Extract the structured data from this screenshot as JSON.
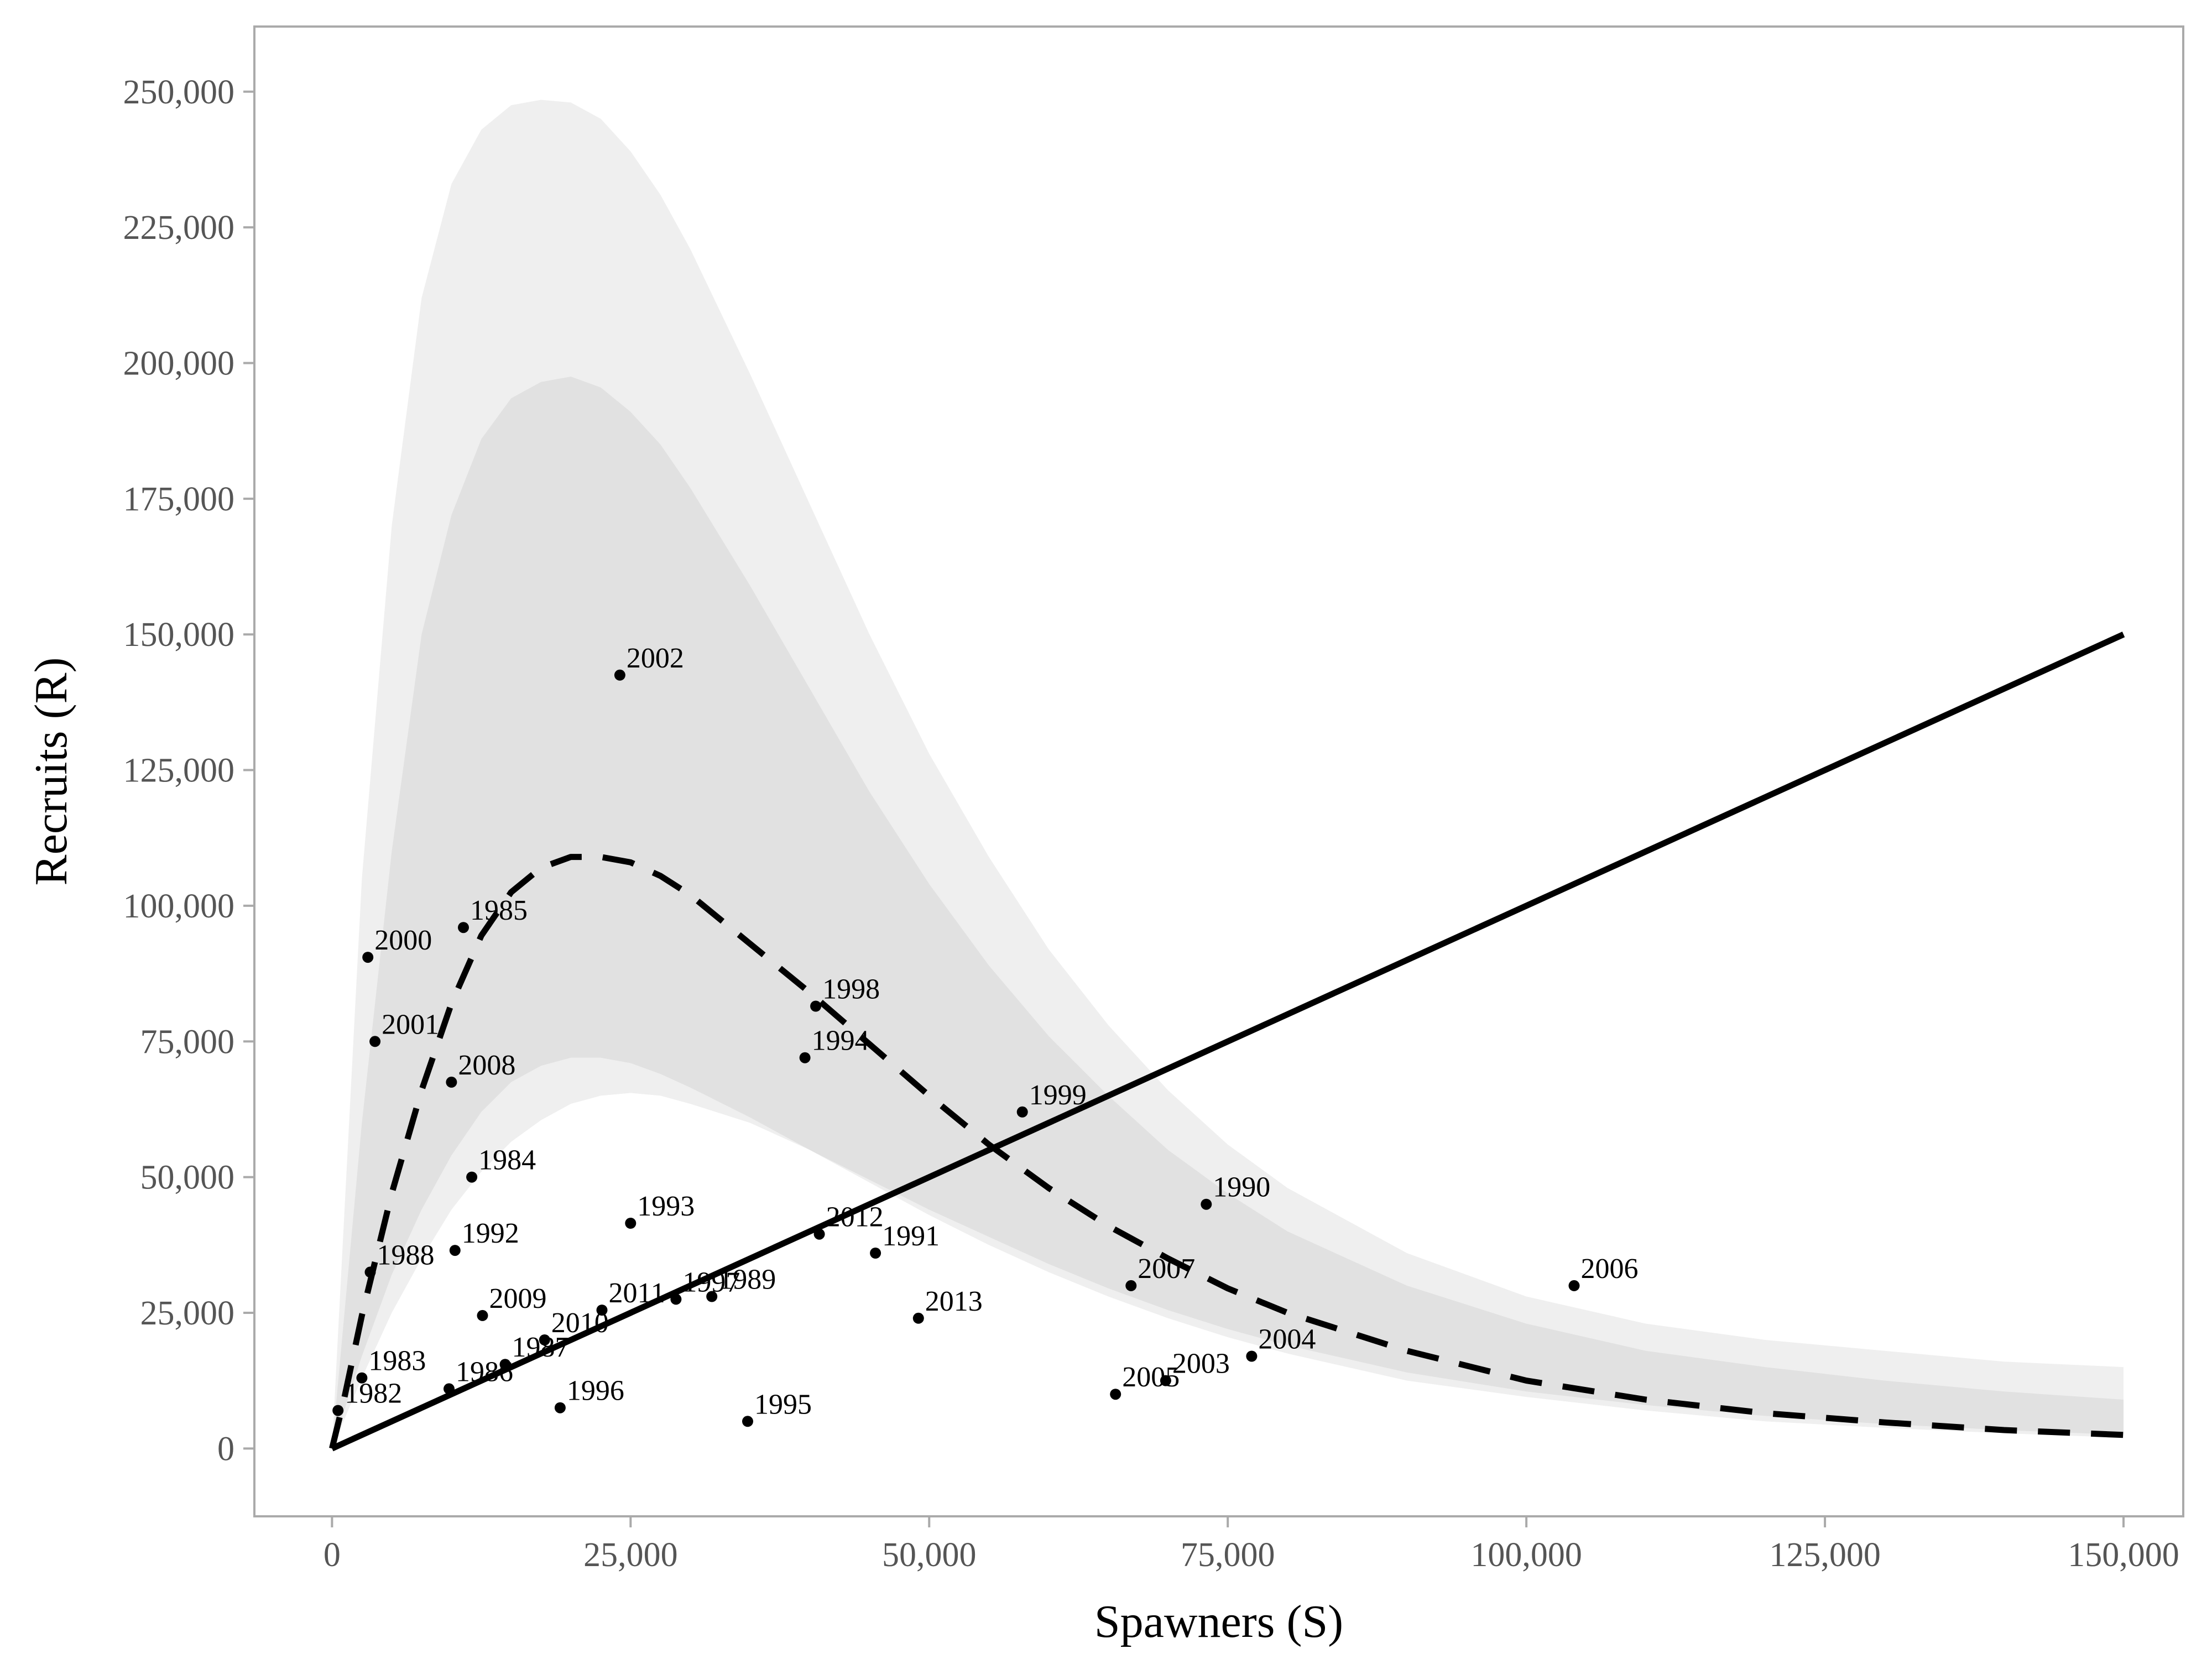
{
  "chart_data": {
    "type": "scatter",
    "xlabel": "Spawners (S)",
    "ylabel": "Recruits (R)",
    "xlim": [
      -6500,
      155000
    ],
    "ylim": [
      -12500,
      262000
    ],
    "x_ticks": [
      0,
      25000,
      50000,
      75000,
      100000,
      125000,
      150000
    ],
    "x_tick_labels": [
      "0",
      "25,000",
      "50,000",
      "75,000",
      "100,000",
      "125,000",
      "150,000"
    ],
    "y_ticks": [
      0,
      25000,
      50000,
      75000,
      100000,
      125000,
      150000,
      175000,
      200000,
      225000,
      250000
    ],
    "y_tick_labels": [
      "0",
      "25,000",
      "50,000",
      "75,000",
      "100,000",
      "125,000",
      "150,000",
      "175,000",
      "200,000",
      "225,000",
      "250,000"
    ],
    "grid": false,
    "colors": {
      "outer_band": "#efefef",
      "inner_band": "#e1e1e1",
      "points": "#000000",
      "lines": "#000000",
      "frame": "#aaaaaa"
    },
    "ricker_curve": {
      "style": "dashed",
      "x": [
        0,
        1000,
        2500,
        5000,
        7500,
        10000,
        12500,
        15000,
        17500,
        20000,
        22500,
        25000,
        27500,
        30000,
        35000,
        40000,
        45000,
        50000,
        55000,
        60000,
        65000,
        70000,
        75000,
        80000,
        90000,
        100000,
        110000,
        120000,
        130000,
        140000,
        150000
      ],
      "y": [
        0,
        9000,
        24500,
        47000,
        66000,
        82000,
        94500,
        102500,
        107000,
        109000,
        109000,
        108000,
        105500,
        102000,
        93000,
        84000,
        74500,
        65000,
        56000,
        48000,
        41000,
        35000,
        29500,
        25000,
        18000,
        12500,
        9000,
        6500,
        4800,
        3400,
        2500
      ]
    },
    "replacement_line": {
      "style": "solid",
      "x": [
        0,
        150000
      ],
      "y": [
        0,
        150000
      ]
    },
    "credible_bands": [
      {
        "x": [
          0,
          2500,
          5000,
          7500,
          10000,
          12500,
          15000,
          17500,
          20000,
          22500,
          25000,
          27500,
          30000,
          35000,
          40000,
          45000,
          50000,
          55000,
          60000,
          65000,
          70000,
          75000,
          80000,
          90000,
          100000,
          110000,
          120000,
          130000,
          140000,
          150000
        ],
        "lower": [
          0,
          13000,
          25000,
          35000,
          44000,
          51000,
          56500,
          60500,
          63500,
          65000,
          65500,
          65000,
          63500,
          60000,
          55000,
          49500,
          44000,
          39000,
          34000,
          29500,
          25500,
          22000,
          19000,
          14000,
          10500,
          8000,
          6000,
          4500,
          3400,
          2500
        ],
        "upper": [
          0,
          105000,
          170000,
          212000,
          233000,
          243000,
          247500,
          248500,
          248000,
          245000,
          239000,
          231000,
          221000,
          198000,
          174000,
          150000,
          128000,
          109000,
          92000,
          78000,
          66000,
          56000,
          48000,
          36000,
          28000,
          23000,
          20000,
          18000,
          16000,
          15000
        ]
      },
      {
        "x": [
          0,
          2500,
          5000,
          7500,
          10000,
          12500,
          15000,
          17500,
          20000,
          22500,
          25000,
          27500,
          30000,
          35000,
          40000,
          45000,
          50000,
          55000,
          60000,
          65000,
          70000,
          75000,
          80000,
          90000,
          100000,
          110000,
          120000,
          130000,
          140000,
          150000
        ],
        "lower": [
          0,
          17000,
          32000,
          44000,
          54000,
          62000,
          67500,
          70500,
          72000,
          72000,
          71000,
          69000,
          66500,
          61000,
          55000,
          49000,
          43000,
          37500,
          32500,
          28000,
          24000,
          20500,
          17500,
          12500,
          9500,
          7000,
          5000,
          3800,
          2800,
          2000
        ],
        "upper": [
          0,
          60000,
          110000,
          150000,
          172000,
          186000,
          193500,
          196500,
          197500,
          195500,
          191000,
          185000,
          177000,
          159000,
          140000,
          121000,
          104000,
          89000,
          76000,
          65000,
          55000,
          47000,
          40000,
          30000,
          23000,
          18000,
          15000,
          12500,
          10500,
          9000
        ]
      }
    ],
    "points": [
      {
        "label": "1982",
        "x": 500,
        "y": 7000
      },
      {
        "label": "1983",
        "x": 2500,
        "y": 13000
      },
      {
        "label": "1984",
        "x": 11700,
        "y": 50000
      },
      {
        "label": "1985",
        "x": 11000,
        "y": 96000
      },
      {
        "label": "1986",
        "x": 9800,
        "y": 11000
      },
      {
        "label": "1987",
        "x": 14500,
        "y": 15500
      },
      {
        "label": "1988",
        "x": 3200,
        "y": 32500
      },
      {
        "label": "1989",
        "x": 31800,
        "y": 28000
      },
      {
        "label": "1990",
        "x": 73200,
        "y": 45000
      },
      {
        "label": "1991",
        "x": 45500,
        "y": 36000
      },
      {
        "label": "1992",
        "x": 10300,
        "y": 36500
      },
      {
        "label": "1993",
        "x": 25000,
        "y": 41500
      },
      {
        "label": "1994",
        "x": 39600,
        "y": 72000
      },
      {
        "label": "1995",
        "x": 34800,
        "y": 5000
      },
      {
        "label": "1996",
        "x": 19100,
        "y": 7500
      },
      {
        "label": "1997",
        "x": 28800,
        "y": 27500
      },
      {
        "label": "1998",
        "x": 40500,
        "y": 81500
      },
      {
        "label": "1999",
        "x": 57800,
        "y": 62000
      },
      {
        "label": "2000",
        "x": 3000,
        "y": 90500
      },
      {
        "label": "2001",
        "x": 3600,
        "y": 75000
      },
      {
        "label": "2002",
        "x": 24100,
        "y": 142500
      },
      {
        "label": "2003",
        "x": 69800,
        "y": 12500
      },
      {
        "label": "2004",
        "x": 77000,
        "y": 17000
      },
      {
        "label": "2005",
        "x": 65600,
        "y": 10000
      },
      {
        "label": "2006",
        "x": 104000,
        "y": 30000
      },
      {
        "label": "2007",
        "x": 66900,
        "y": 30000
      },
      {
        "label": "2008",
        "x": 10000,
        "y": 67500
      },
      {
        "label": "2009",
        "x": 12600,
        "y": 24500
      },
      {
        "label": "2010",
        "x": 17800,
        "y": 20000
      },
      {
        "label": "2011",
        "x": 22600,
        "y": 25500
      },
      {
        "label": "2012",
        "x": 40800,
        "y": 39500
      },
      {
        "label": "2013",
        "x": 49100,
        "y": 24000
      }
    ]
  }
}
